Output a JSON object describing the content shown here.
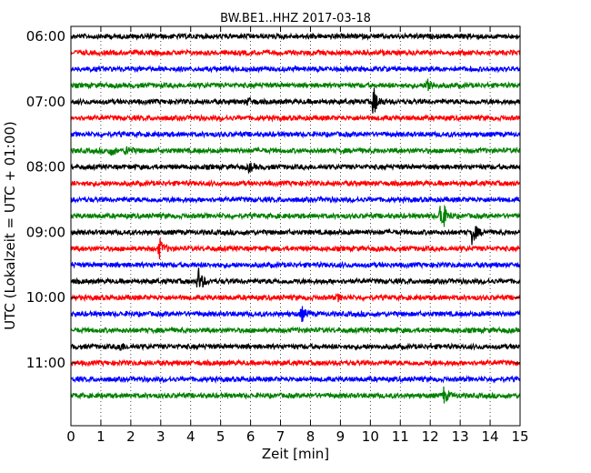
{
  "chart_data": {
    "type": "line",
    "title": "BW.BE1..HHZ 2017-03-18",
    "xlabel": "Zeit  [min]",
    "ylabel": "UTC (Lokalzeit = UTC + 01:00)",
    "xlim": [
      0,
      15
    ],
    "x_ticks": [
      0,
      1,
      2,
      3,
      4,
      5,
      6,
      7,
      8,
      9,
      10,
      11,
      12,
      13,
      14,
      15
    ],
    "x_tick_labels": [
      "0",
      "1",
      "2",
      "3",
      "4",
      "5",
      "6",
      "7",
      "8",
      "9",
      "10",
      "11",
      "12",
      "13",
      "14",
      "15"
    ],
    "grid": "vertical dotted",
    "row_interval_minutes": 15,
    "y_tick_labels": [
      "06:00",
      "07:00",
      "08:00",
      "09:00",
      "10:00",
      "11:00"
    ],
    "color_cycle": [
      "#000000",
      "#ff0000",
      "#0000ff",
      "#008000"
    ],
    "series": [
      {
        "start": "06:00",
        "color": "#000000",
        "events": []
      },
      {
        "start": "06:15",
        "color": "#ff0000",
        "events": []
      },
      {
        "start": "06:30",
        "color": "#0000ff",
        "events": []
      },
      {
        "start": "06:45",
        "color": "#008000",
        "events": [
          {
            "t": 11.9,
            "amp": 9
          }
        ]
      },
      {
        "start": "07:00",
        "color": "#000000",
        "events": [
          {
            "t": 10.1,
            "amp": 17
          },
          {
            "t": 5.9,
            "amp": 4
          }
        ]
      },
      {
        "start": "07:15",
        "color": "#ff0000",
        "events": []
      },
      {
        "start": "07:30",
        "color": "#0000ff",
        "events": []
      },
      {
        "start": "07:45",
        "color": "#008000",
        "events": [
          {
            "t": 1.3,
            "amp": 5
          },
          {
            "t": 1.85,
            "amp": 6
          }
        ]
      },
      {
        "start": "08:00",
        "color": "#000000",
        "events": [
          {
            "t": 5.95,
            "amp": 5
          }
        ]
      },
      {
        "start": "08:15",
        "color": "#ff0000",
        "events": []
      },
      {
        "start": "08:30",
        "color": "#0000ff",
        "events": []
      },
      {
        "start": "08:45",
        "color": "#008000",
        "events": [
          {
            "t": 12.35,
            "amp": 25
          }
        ]
      },
      {
        "start": "09:00",
        "color": "#000000",
        "events": [
          {
            "t": 13.4,
            "amp": 14
          }
        ]
      },
      {
        "start": "09:15",
        "color": "#ff0000",
        "events": [
          {
            "t": 2.95,
            "amp": 11
          }
        ]
      },
      {
        "start": "09:30",
        "color": "#0000ff",
        "events": []
      },
      {
        "start": "09:45",
        "color": "#000000",
        "events": [
          {
            "t": 4.25,
            "amp": 16
          }
        ]
      },
      {
        "start": "10:00",
        "color": "#ff0000",
        "events": [
          {
            "t": 8.9,
            "amp": 3
          }
        ]
      },
      {
        "start": "10:15",
        "color": "#0000ff",
        "events": [
          {
            "t": 7.7,
            "amp": 8
          }
        ]
      },
      {
        "start": "10:30",
        "color": "#008000",
        "events": []
      },
      {
        "start": "10:45",
        "color": "#000000",
        "events": [
          {
            "t": 1.6,
            "amp": 6
          }
        ]
      },
      {
        "start": "11:00",
        "color": "#ff0000",
        "events": []
      },
      {
        "start": "11:15",
        "color": "#0000ff",
        "events": []
      },
      {
        "start": "11:30",
        "color": "#008000",
        "events": [
          {
            "t": 12.45,
            "amp": 9
          }
        ]
      }
    ]
  }
}
